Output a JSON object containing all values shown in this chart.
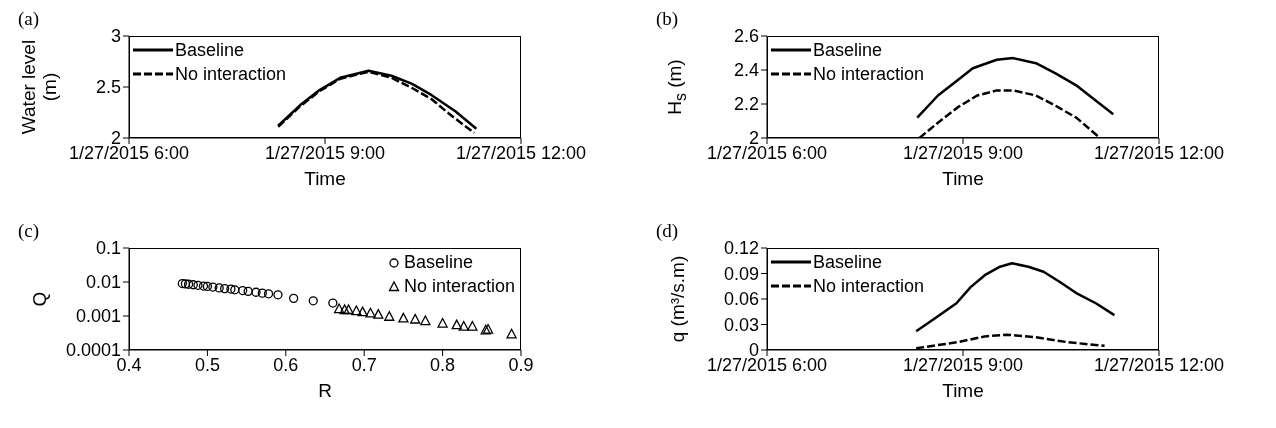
{
  "chart_data": [
    {
      "type": "line",
      "annotations": [
        "(a)"
      ],
      "xlabel": "Time",
      "ylabel": "Water level (m)",
      "xlim": [
        "2015-01-27T06:00",
        "2015-01-27T12:00"
      ],
      "xticks": [
        {
          "value": "2015-01-27T06:00",
          "label": "1/27/2015 6:00"
        },
        {
          "value": "2015-01-27T09:00",
          "label": "1/27/2015 9:00"
        },
        {
          "value": "2015-01-27T12:00",
          "label": "1/27/2015 12:00"
        }
      ],
      "ylim": [
        2,
        3
      ],
      "yticks": [
        2,
        2.5,
        3
      ],
      "legend": "top left",
      "series": [
        {
          "name": "Baseline",
          "color": "#000000",
          "line_style": "solid",
          "x": [
            "2015-01-27T08:17",
            "2015-01-27T08:37",
            "2015-01-27T08:55",
            "2015-01-27T09:14",
            "2015-01-27T09:40",
            "2015-01-27T10:01",
            "2015-01-27T10:20",
            "2015-01-27T10:38",
            "2015-01-27T11:00",
            "2015-01-27T11:19"
          ],
          "values": [
            2.12,
            2.32,
            2.47,
            2.59,
            2.66,
            2.61,
            2.53,
            2.42,
            2.26,
            2.09
          ]
        },
        {
          "name": "No interaction",
          "color": "#000000",
          "line_style": "dashed",
          "x": [
            "2015-01-27T08:17",
            "2015-01-27T08:37",
            "2015-01-27T08:55",
            "2015-01-27T09:14",
            "2015-01-27T09:40",
            "2015-01-27T10:01",
            "2015-01-27T10:20",
            "2015-01-27T10:38",
            "2015-01-27T10:56",
            "2015-01-27T11:17"
          ],
          "values": [
            2.11,
            2.31,
            2.46,
            2.58,
            2.65,
            2.59,
            2.49,
            2.38,
            2.22,
            2.05
          ]
        }
      ]
    },
    {
      "type": "line",
      "annotations": [
        "(b)"
      ],
      "xlabel": "Time",
      "ylabel": "H$_{s}$ (m)",
      "xlim": [
        "2015-01-27T06:00",
        "2015-01-27T12:00"
      ],
      "xticks": [
        {
          "value": "2015-01-27T06:00",
          "label": "1/27/2015 6:00"
        },
        {
          "value": "2015-01-27T09:00",
          "label": "1/27/2015 9:00"
        },
        {
          "value": "2015-01-27T12:00",
          "label": "1/27/2015 12:00"
        }
      ],
      "ylim": [
        2,
        2.6
      ],
      "yticks": [
        2,
        2.2,
        2.4,
        2.6
      ],
      "legend": "top left",
      "series": [
        {
          "name": "Baseline",
          "color": "#000000",
          "line_style": "solid",
          "x": [
            "2015-01-27T08:18",
            "2015-01-27T08:37",
            "2015-01-27T08:55",
            "2015-01-27T09:09",
            "2015-01-27T09:31",
            "2015-01-27T09:46",
            "2015-01-27T10:07",
            "2015-01-27T10:25",
            "2015-01-27T10:44",
            "2015-01-27T10:58",
            "2015-01-27T11:18"
          ],
          "values": [
            2.12,
            2.25,
            2.34,
            2.41,
            2.46,
            2.47,
            2.44,
            2.38,
            2.31,
            2.24,
            2.14
          ]
        },
        {
          "name": "No interaction",
          "color": "#000000",
          "line_style": "dashed",
          "x": [
            "2015-01-27T08:20",
            "2015-01-27T08:37",
            "2015-01-27T08:55",
            "2015-01-27T09:13",
            "2015-01-27T09:31",
            "2015-01-27T09:46",
            "2015-01-27T10:07",
            "2015-01-27T10:25",
            "2015-01-27T10:44",
            "2015-01-27T11:04"
          ],
          "values": [
            2.0,
            2.09,
            2.18,
            2.25,
            2.28,
            2.28,
            2.25,
            2.19,
            2.12,
            2.01
          ]
        }
      ]
    },
    {
      "type": "scatter",
      "annotations": [
        "(c)"
      ],
      "xlabel": "R",
      "ylabel": "Q",
      "xlim": [
        0.4,
        0.9
      ],
      "xticks": [
        0.4,
        0.5,
        0.6,
        0.7,
        0.8,
        0.9
      ],
      "ylim": [
        0.0001,
        0.1
      ],
      "yticks": [
        0.0001,
        0.001,
        0.01,
        0.1
      ],
      "log": "y",
      "legend": "top right",
      "series": [
        {
          "name": "Baseline",
          "color": "#000000",
          "marker": "circle",
          "x": [
            0.468,
            0.472,
            0.476,
            0.482,
            0.488,
            0.495,
            0.5,
            0.507,
            0.515,
            0.522,
            0.53,
            0.535,
            0.545,
            0.552,
            0.562,
            0.57,
            0.578,
            0.59,
            0.61,
            0.635,
            0.66
          ],
          "values": [
            0.009,
            0.0088,
            0.0086,
            0.0083,
            0.008,
            0.0076,
            0.0074,
            0.0071,
            0.0067,
            0.0064,
            0.0062,
            0.0059,
            0.0056,
            0.0053,
            0.005,
            0.0047,
            0.0045,
            0.0042,
            0.0033,
            0.0028,
            0.0024
          ]
        },
        {
          "name": "No interaction",
          "color": "#000000",
          "marker": "triangle",
          "x": [
            0.668,
            0.675,
            0.68,
            0.69,
            0.698,
            0.708,
            0.718,
            0.732,
            0.75,
            0.765,
            0.778,
            0.8,
            0.818,
            0.827,
            0.838,
            0.855,
            0.858,
            0.888
          ],
          "values": [
            0.0016,
            0.0015,
            0.0015,
            0.0014,
            0.0013,
            0.0012,
            0.0011,
            0.00095,
            0.00085,
            0.00079,
            0.00071,
            0.0006,
            0.00054,
            0.00049,
            0.00049,
            0.00038,
            0.0004,
            0.00029
          ]
        }
      ]
    },
    {
      "type": "line",
      "annotations": [
        "(d)"
      ],
      "xlabel": "Time",
      "ylabel": "q (m³/s.m)",
      "xlim": [
        "2015-01-27T06:00",
        "2015-01-27T12:00"
      ],
      "xticks": [
        {
          "value": "2015-01-27T06:00",
          "label": "1/27/2015 6:00"
        },
        {
          "value": "2015-01-27T09:00",
          "label": "1/27/2015 9:00"
        },
        {
          "value": "2015-01-27T12:00",
          "label": "1/27/2015 12:00"
        }
      ],
      "ylim": [
        0,
        0.12
      ],
      "yticks": [
        0,
        0.03,
        0.06,
        0.09,
        0.12
      ],
      "legend": "top left",
      "series": [
        {
          "name": "Baseline",
          "color": "#000000",
          "line_style": "solid",
          "x": [
            "2015-01-27T08:17",
            "2015-01-27T08:35",
            "2015-01-27T08:54",
            "2015-01-27T09:07",
            "2015-01-27T09:20",
            "2015-01-27T09:34",
            "2015-01-27T09:45",
            "2015-01-27T10:00",
            "2015-01-27T10:14",
            "2015-01-27T10:29",
            "2015-01-27T10:44",
            "2015-01-27T11:02",
            "2015-01-27T11:19"
          ],
          "values": [
            0.022,
            0.038,
            0.055,
            0.074,
            0.088,
            0.098,
            0.102,
            0.098,
            0.092,
            0.08,
            0.067,
            0.055,
            0.041
          ]
        },
        {
          "name": "No interaction",
          "color": "#000000",
          "line_style": "dashed",
          "x": [
            "2015-01-27T08:17",
            "2015-01-27T08:54",
            "2015-01-27T09:20",
            "2015-01-27T09:41",
            "2015-01-27T10:07",
            "2015-01-27T10:37",
            "2015-01-27T11:10"
          ],
          "values": [
            0.002,
            0.009,
            0.016,
            0.018,
            0.015,
            0.009,
            0.005
          ]
        }
      ]
    }
  ]
}
